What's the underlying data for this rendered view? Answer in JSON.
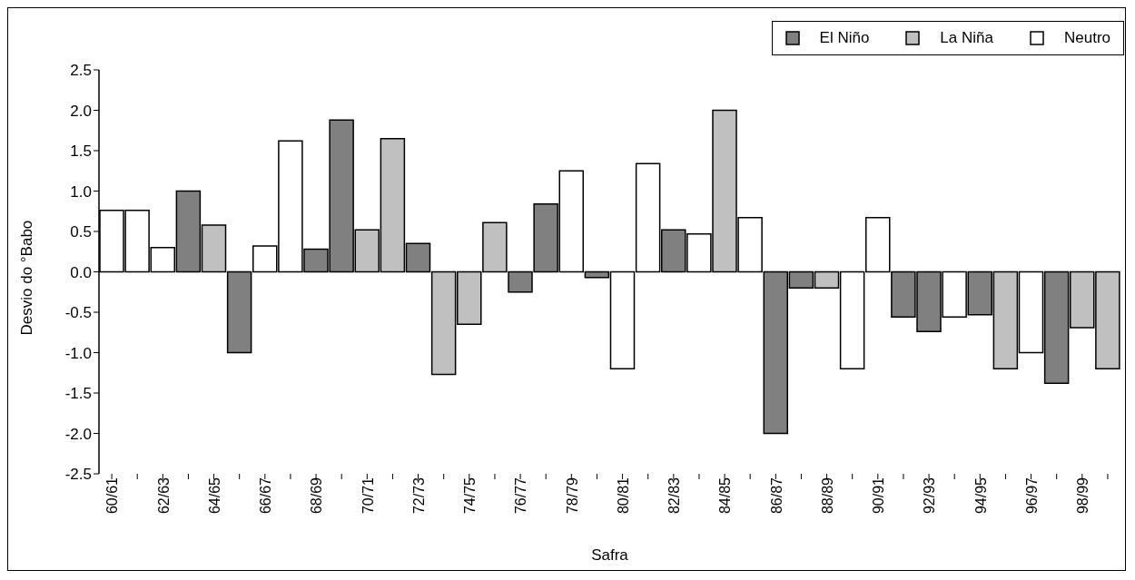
{
  "chart_data": {
    "type": "bar",
    "xlabel": "Safra",
    "ylabel": "Desvio do °Babo",
    "categories": [
      "60/61",
      null,
      "62/63",
      null,
      "64/65",
      null,
      "66/67",
      null,
      "68/69",
      null,
      "70/71",
      null,
      "72/73",
      null,
      "74/75",
      null,
      "76/77",
      null,
      "78/79",
      null,
      "80/81",
      null,
      "82/83",
      null,
      "84/85",
      null,
      "86/87",
      null,
      "88/89",
      null,
      "90/91",
      null,
      "92/93",
      null,
      "94/95",
      null,
      "96/97",
      null,
      "98/99",
      null
    ],
    "series": [
      {
        "name": "El Niño",
        "color": "#808080",
        "values": [
          null,
          null,
          null,
          1.0,
          null,
          -1.0,
          null,
          null,
          0.28,
          1.88,
          null,
          null,
          0.35,
          null,
          null,
          null,
          -0.25,
          0.84,
          null,
          -0.07,
          null,
          null,
          0.52,
          null,
          null,
          null,
          -2.0,
          -0.2,
          null,
          null,
          null,
          -0.56,
          -0.74,
          null,
          -0.53,
          null,
          null,
          -1.38,
          null,
          null
        ]
      },
      {
        "name": "La Niña",
        "color": "#c0c0c0",
        "values": [
          null,
          null,
          null,
          null,
          0.58,
          null,
          null,
          null,
          null,
          null,
          0.52,
          1.65,
          null,
          -1.27,
          -0.65,
          0.61,
          null,
          null,
          null,
          null,
          null,
          null,
          null,
          null,
          2.0,
          null,
          null,
          null,
          -0.2,
          null,
          null,
          null,
          null,
          null,
          null,
          -1.2,
          null,
          null,
          -0.69,
          -1.2
        ]
      },
      {
        "name": "Neutro",
        "color": "#ffffff",
        "values": [
          0.76,
          0.76,
          0.3,
          null,
          null,
          null,
          0.32,
          1.62,
          null,
          null,
          null,
          null,
          null,
          null,
          null,
          null,
          null,
          null,
          1.25,
          null,
          -1.2,
          1.34,
          null,
          0.47,
          null,
          0.67,
          null,
          null,
          null,
          -1.2,
          0.67,
          null,
          null,
          -0.56,
          null,
          null,
          -1.0,
          null,
          null,
          null
        ]
      }
    ],
    "ylim": [
      -2.5,
      2.5
    ],
    "yticks": [
      {
        "value": -2.5,
        "label": "-2.5"
      },
      {
        "value": -2,
        "label": "-2.0"
      },
      {
        "value": -1.5,
        "label": "-1.5"
      },
      {
        "value": -1,
        "label": "-1.0"
      },
      {
        "value": -0.5,
        "label": "-0.5"
      },
      {
        "value": 0,
        "label": "0.0"
      },
      {
        "value": 0.5,
        "label": "0.5"
      },
      {
        "value": 1,
        "label": "1.0"
      },
      {
        "value": 1.5,
        "label": "1.5"
      },
      {
        "value": 2,
        "label": "2.0"
      },
      {
        "value": 2.5,
        "label": "2.5"
      }
    ],
    "grid": false,
    "legend": "top right"
  }
}
